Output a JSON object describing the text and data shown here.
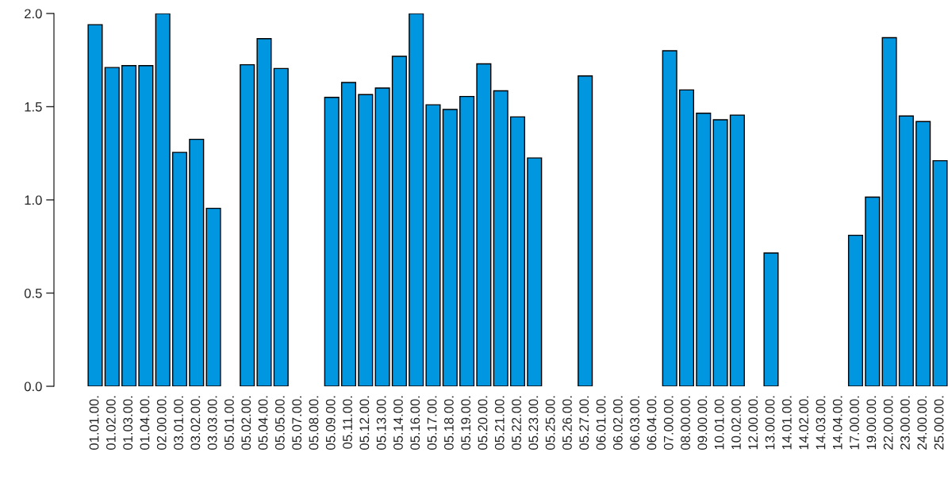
{
  "chart_data": {
    "type": "bar",
    "categories": [
      "01.01.00.",
      "01.02.00.",
      "01.03.00.",
      "01.04.00.",
      "02.00.00.",
      "03.01.00.",
      "03.02.00.",
      "03.03.00.",
      "05.01.00.",
      "05.02.00.",
      "05.04.00.",
      "05.05.00.",
      "05.07.00.",
      "05.08.00.",
      "05.09.00.",
      "05.11.00.",
      "05.12.00.",
      "05.13.00.",
      "05.14.00.",
      "05.16.00.",
      "05.17.00.",
      "05.18.00.",
      "05.19.00.",
      "05.20.00.",
      "05.21.00.",
      "05.22.00.",
      "05.23.00.",
      "05.25.00.",
      "05.26.00.",
      "05.27.00.",
      "06.01.00.",
      "06.02.00.",
      "06.03.00.",
      "06.04.00.",
      "07.00.00.",
      "08.00.00.",
      "09.00.00.",
      "10.01.00.",
      "10.02.00.",
      "12.00.00.",
      "13.00.00.",
      "14.01.00.",
      "14.02.00.",
      "14.03.00.",
      "14.04.00.",
      "17.00.00.",
      "19.00.00.",
      "22.00.00.",
      "23.00.00.",
      "24.00.00.",
      "25.00.00."
    ],
    "values": [
      1.94,
      1.71,
      1.72,
      1.72,
      2.0,
      1.255,
      1.325,
      0.955,
      null,
      1.725,
      1.865,
      1.705,
      null,
      null,
      1.55,
      1.63,
      1.565,
      1.6,
      1.77,
      2.0,
      1.51,
      1.485,
      1.555,
      1.73,
      1.585,
      1.445,
      1.225,
      null,
      null,
      1.665,
      null,
      null,
      null,
      null,
      1.8,
      1.59,
      1.465,
      1.43,
      1.455,
      null,
      0.715,
      null,
      null,
      null,
      null,
      0.81,
      1.015,
      1.87,
      1.45,
      1.42,
      1.21
    ],
    "color": "#0096e0",
    "ylim": [
      0,
      2.0
    ],
    "yticks": [
      {
        "value": 0,
        "label": "0.0"
      },
      {
        "value": 0.5,
        "label": "0.5"
      },
      {
        "value": 1,
        "label": "1.0"
      },
      {
        "value": 1.5,
        "label": "1.5"
      },
      {
        "value": 2,
        "label": "2.0"
      }
    ],
    "grid": false,
    "legend": false
  }
}
